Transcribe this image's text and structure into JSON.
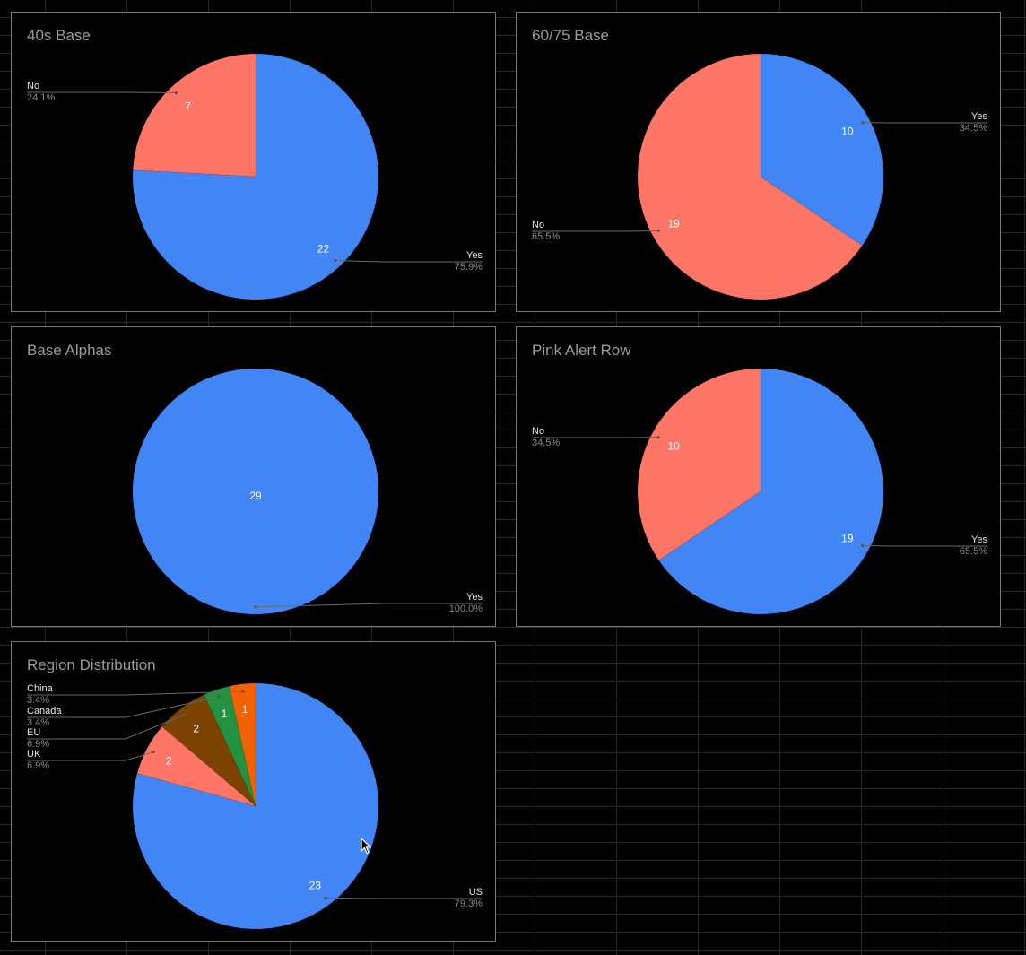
{
  "colors": {
    "blue": "#4285f4",
    "red": "#ff7566",
    "brown": "#7b4200",
    "green": "#229140",
    "orange": "#f46100"
  },
  "chart_data": [
    {
      "type": "pie",
      "title": "40s Base",
      "slices": [
        {
          "label": "Yes",
          "value": 22,
          "percent": "75.9%",
          "color": "#4285f4"
        },
        {
          "label": "No",
          "value": 7,
          "percent": "24.1%",
          "color": "#ff7566"
        }
      ]
    },
    {
      "type": "pie",
      "title": "60/75 Base",
      "slices": [
        {
          "label": "Yes",
          "value": 10,
          "percent": "34.5%",
          "color": "#4285f4"
        },
        {
          "label": "No",
          "value": 19,
          "percent": "65.5%",
          "color": "#ff7566"
        }
      ]
    },
    {
      "type": "pie",
      "title": "Base Alphas",
      "slices": [
        {
          "label": "Yes",
          "value": 29,
          "percent": "100.0%",
          "color": "#4285f4"
        }
      ]
    },
    {
      "type": "pie",
      "title": "Pink Alert Row",
      "slices": [
        {
          "label": "Yes",
          "value": 19,
          "percent": "65.5%",
          "color": "#4285f4"
        },
        {
          "label": "No",
          "value": 10,
          "percent": "34.5%",
          "color": "#ff7566"
        }
      ]
    },
    {
      "type": "pie",
      "title": "Region Distribution",
      "slices": [
        {
          "label": "US",
          "value": 23,
          "percent": "79.3%",
          "color": "#4285f4"
        },
        {
          "label": "UK",
          "value": 2,
          "percent": "6.9%",
          "color": "#ff7566"
        },
        {
          "label": "EU",
          "value": 2,
          "percent": "6.9%",
          "color": "#7b4200"
        },
        {
          "label": "Canada",
          "value": 1,
          "percent": "3.4%",
          "color": "#229140"
        },
        {
          "label": "China",
          "value": 1,
          "percent": "3.4%",
          "color": "#f46100"
        }
      ]
    }
  ]
}
